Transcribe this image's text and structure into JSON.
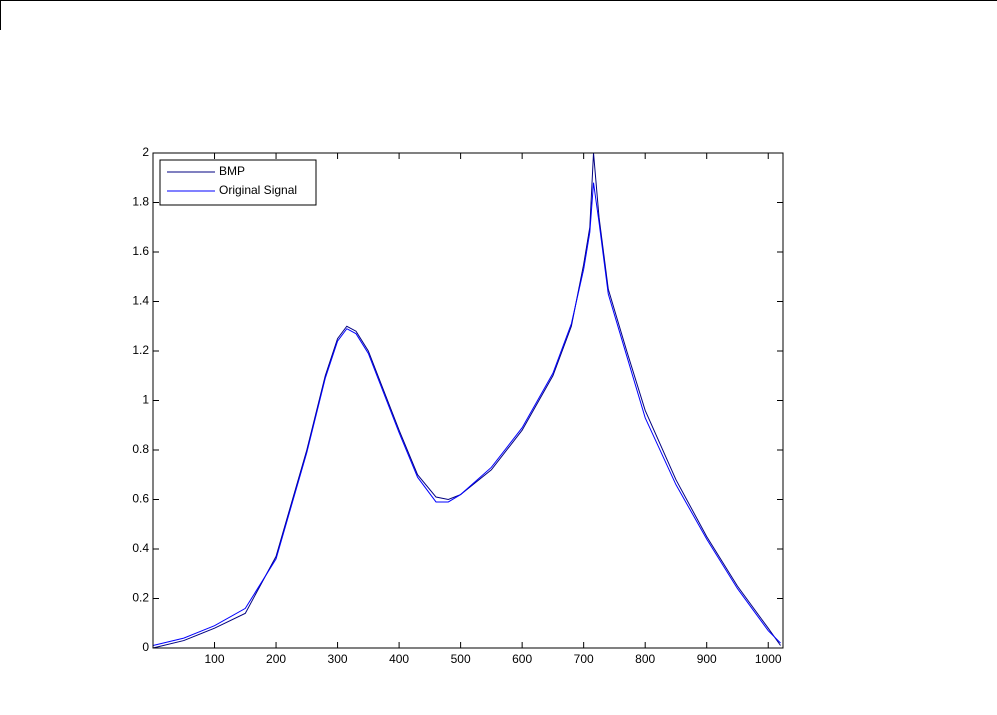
{
  "chart_data": {
    "type": "line",
    "x": [
      0,
      50,
      100,
      150,
      200,
      250,
      280,
      300,
      315,
      330,
      350,
      400,
      430,
      460,
      480,
      500,
      550,
      600,
      650,
      680,
      700,
      710,
      716,
      725,
      740,
      770,
      800,
      850,
      900,
      950,
      1000,
      1020
    ],
    "series": [
      {
        "name": "BMP",
        "color": "#000080",
        "values": [
          0.0,
          0.03,
          0.08,
          0.14,
          0.37,
          0.8,
          1.1,
          1.25,
          1.3,
          1.28,
          1.2,
          0.88,
          0.7,
          0.61,
          0.6,
          0.62,
          0.72,
          0.88,
          1.1,
          1.3,
          1.55,
          1.7,
          2.0,
          1.74,
          1.45,
          1.2,
          0.96,
          0.68,
          0.45,
          0.25,
          0.08,
          0.01
        ]
      },
      {
        "name": "Original Signal",
        "color": "#0000ff",
        "values": [
          0.01,
          0.04,
          0.09,
          0.16,
          0.36,
          0.79,
          1.09,
          1.24,
          1.29,
          1.27,
          1.19,
          0.87,
          0.69,
          0.59,
          0.59,
          0.62,
          0.73,
          0.89,
          1.11,
          1.31,
          1.53,
          1.68,
          1.88,
          1.72,
          1.43,
          1.18,
          0.93,
          0.66,
          0.44,
          0.24,
          0.07,
          0.02
        ]
      }
    ],
    "xlim": [
      0,
      1024
    ],
    "xticks": [
      100,
      200,
      300,
      400,
      500,
      600,
      700,
      800,
      900,
      1000
    ],
    "ylim": [
      0,
      2
    ],
    "yticks": [
      0,
      0.2,
      0.4,
      0.6,
      0.8,
      1,
      1.2,
      1.4,
      1.6,
      1.8,
      2
    ],
    "legend": "top-left"
  }
}
